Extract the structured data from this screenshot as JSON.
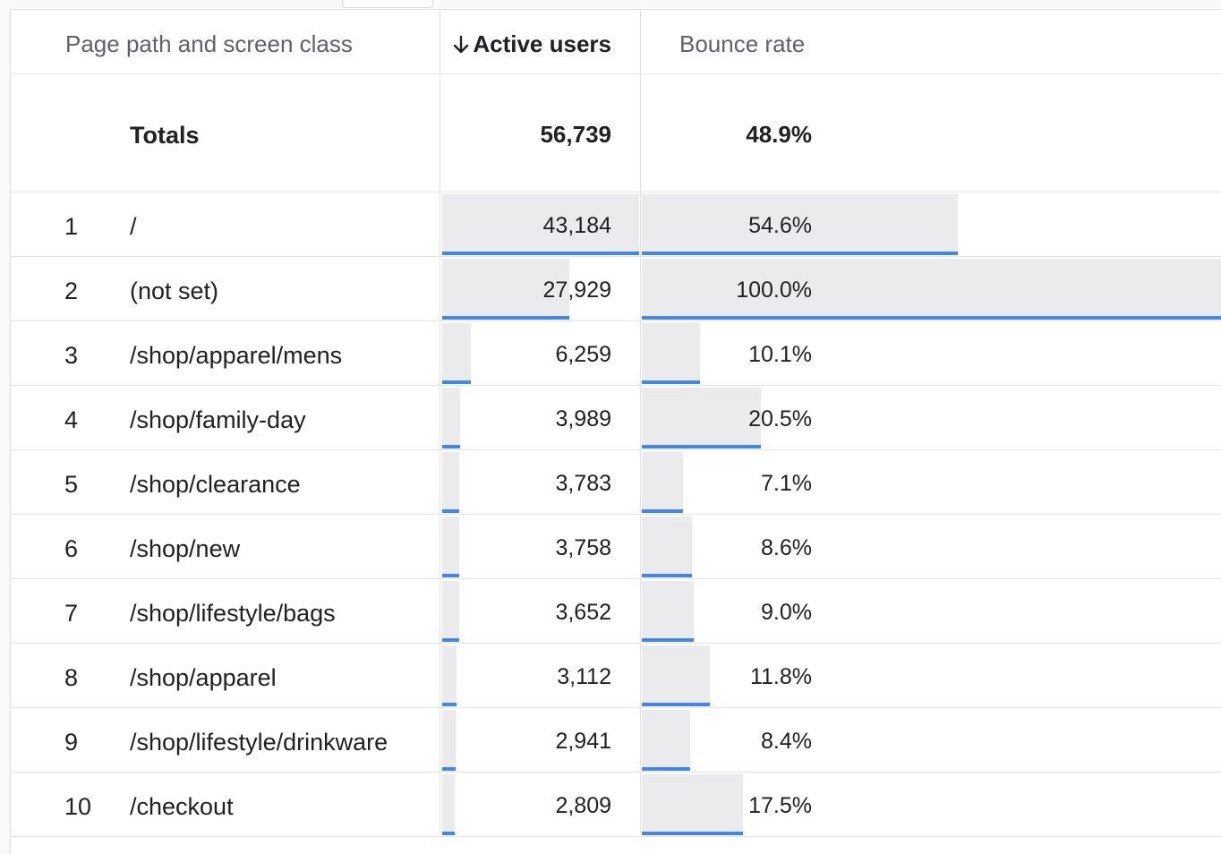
{
  "table": {
    "headers": {
      "dimension": "Page path and screen class",
      "active_users": "Active users",
      "bounce_rate": "Bounce rate"
    },
    "sort_icon": "arrow-down-icon",
    "totals": {
      "label": "Totals",
      "active_users": "56,739",
      "bounce_rate": "48.9%"
    },
    "rows": [
      {
        "rank": "1",
        "path": "/",
        "active_users": "43,184",
        "bounce_rate": "54.6%",
        "users_value": 43184,
        "bounce_value": 54.6
      },
      {
        "rank": "2",
        "path": "(not set)",
        "active_users": "27,929",
        "bounce_rate": "100.0%",
        "users_value": 27929,
        "bounce_value": 100.0
      },
      {
        "rank": "3",
        "path": "/shop/apparel/mens",
        "active_users": "6,259",
        "bounce_rate": "10.1%",
        "users_value": 6259,
        "bounce_value": 10.1
      },
      {
        "rank": "4",
        "path": "/shop/family-day",
        "active_users": "3,989",
        "bounce_rate": "20.5%",
        "users_value": 3989,
        "bounce_value": 20.5
      },
      {
        "rank": "5",
        "path": "/shop/clearance",
        "active_users": "3,783",
        "bounce_rate": "7.1%",
        "users_value": 3783,
        "bounce_value": 7.1
      },
      {
        "rank": "6",
        "path": "/shop/new",
        "active_users": "3,758",
        "bounce_rate": "8.6%",
        "users_value": 3758,
        "bounce_value": 8.6
      },
      {
        "rank": "7",
        "path": "/shop/lifestyle/bags",
        "active_users": "3,652",
        "bounce_rate": "9.0%",
        "users_value": 3652,
        "bounce_value": 9.0
      },
      {
        "rank": "8",
        "path": "/shop/apparel",
        "active_users": "3,112",
        "bounce_rate": "11.8%",
        "users_value": 3112,
        "bounce_value": 11.8
      },
      {
        "rank": "9",
        "path": "/shop/lifestyle/drinkware",
        "active_users": "2,941",
        "bounce_rate": "8.4%",
        "users_value": 2941,
        "bounce_value": 8.4
      },
      {
        "rank": "10",
        "path": "/checkout",
        "active_users": "2,809",
        "bounce_rate": "17.5%",
        "users_value": 2809,
        "bounce_value": 17.5
      }
    ]
  },
  "colors": {
    "bar_fill": "#ebebee",
    "bar_accent": "#4285f4"
  }
}
